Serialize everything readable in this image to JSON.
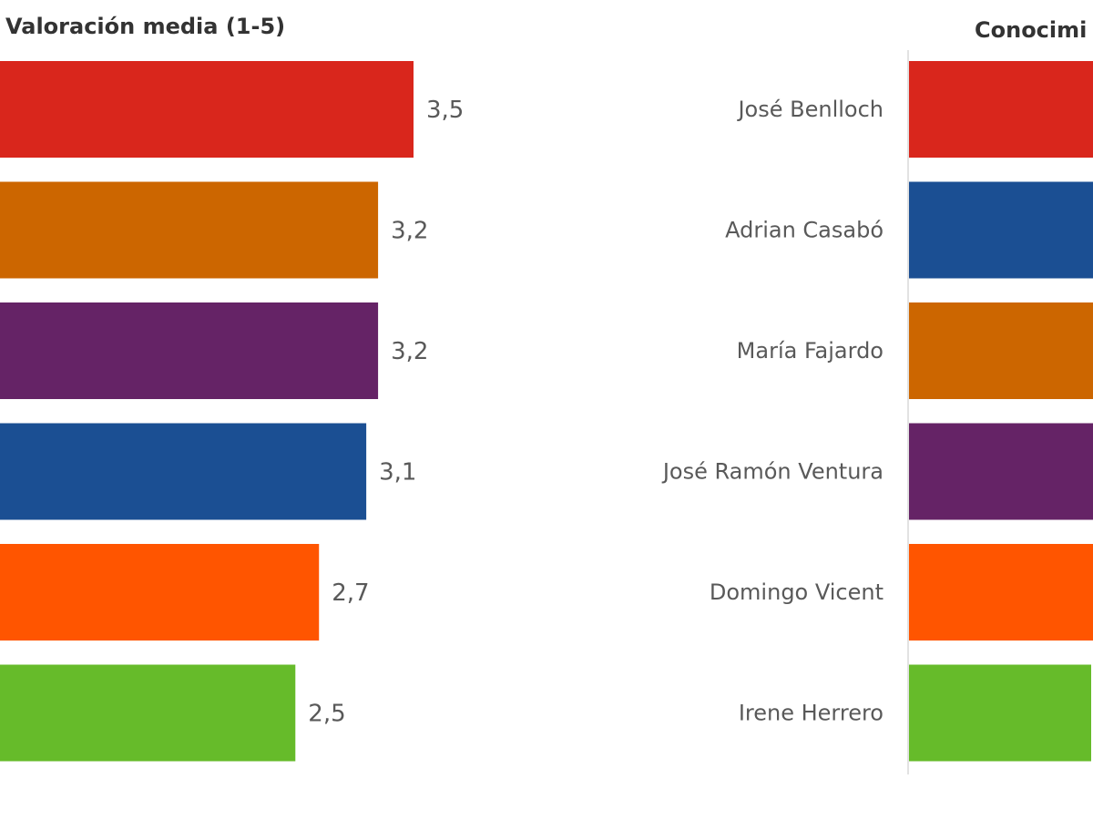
{
  "chart_data": [
    {
      "type": "bar",
      "orientation": "horizontal",
      "title": "Valoración media (1-5)",
      "categories": [
        "José Benlloch",
        "Adrian Casabó",
        "María Fajardo",
        "José Ramón Ventura",
        "Domingo Vicent",
        "Irene Herrero"
      ],
      "values": [
        3.5,
        3.2,
        3.2,
        3.1,
        2.7,
        2.5
      ],
      "value_labels": [
        "3,5",
        "3,2",
        "3,2",
        "3,1",
        "2,7",
        "2,5"
      ],
      "colors": [
        "#d9261c",
        "#cc6600",
        "#652366",
        "#1b4f93",
        "#ff5500",
        "#66bb2a"
      ],
      "xlim": [
        0,
        5
      ],
      "grid": false
    },
    {
      "type": "bar",
      "orientation": "horizontal",
      "title": "Conocimi",
      "categories": [
        "José Benlloch",
        "Adrian Casabó",
        "María Fajardo",
        "José Ramón Ventura",
        "Domingo Vicent",
        "Irene Herrero"
      ],
      "colors": [
        "#d9261c",
        "#1b4f93",
        "#cc6600",
        "#652366",
        "#ff5500",
        "#66bb2a"
      ],
      "grid": false
    }
  ]
}
